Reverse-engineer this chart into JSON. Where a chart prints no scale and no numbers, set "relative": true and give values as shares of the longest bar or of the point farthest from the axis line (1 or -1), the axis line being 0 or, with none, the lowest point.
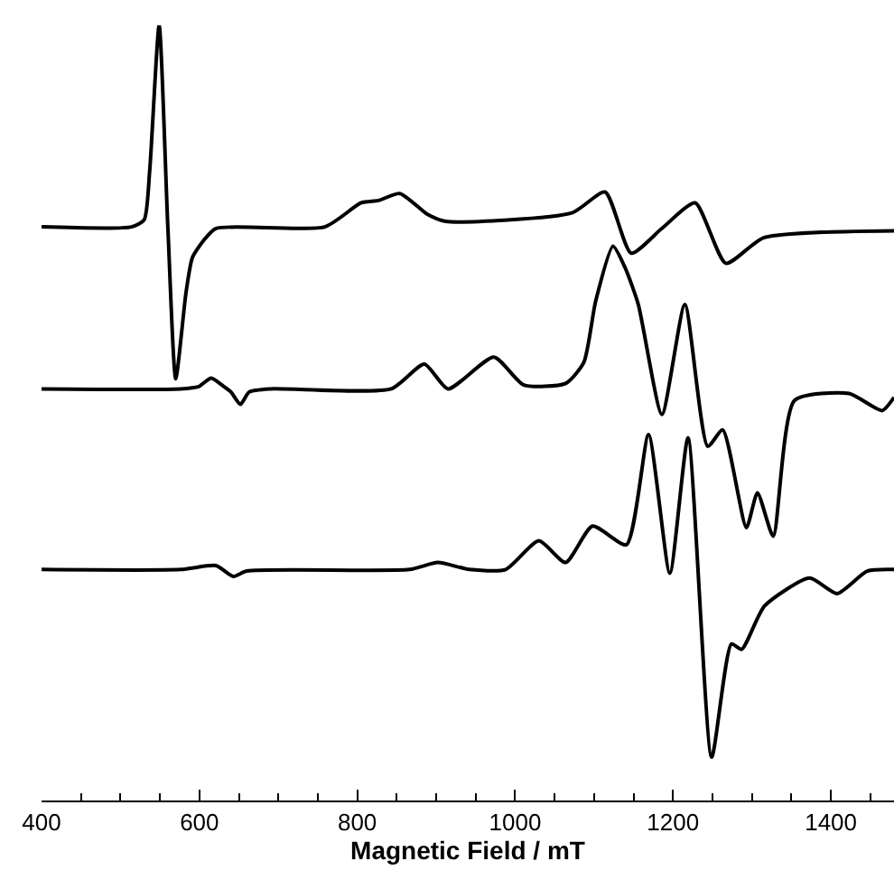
{
  "chart_data": {
    "type": "line",
    "relative": true,
    "xlabel": "Magnetic Field / mT",
    "xlim": [
      400,
      1480
    ],
    "xticks": [
      400,
      {
        "value": 450,
        "label": null
      },
      {
        "value": 500,
        "label": null
      },
      {
        "value": 550,
        "label": null
      },
      600,
      {
        "value": 650,
        "label": null
      },
      {
        "value": 700,
        "label": null
      },
      {
        "value": 750,
        "label": null
      },
      800,
      {
        "value": 850,
        "label": null
      },
      {
        "value": 900,
        "label": null
      },
      {
        "value": 950,
        "label": null
      },
      1000,
      {
        "value": 1050,
        "label": null
      },
      {
        "value": 1100,
        "label": null
      },
      {
        "value": 1150,
        "label": null
      },
      1200,
      {
        "value": 1250,
        "label": null
      },
      {
        "value": 1300,
        "label": null
      },
      {
        "value": 1350,
        "label": null
      },
      1400,
      {
        "value": 1450,
        "label": null
      }
    ],
    "tick_labels": "x",
    "marker": "none",
    "line_style": "solid",
    "series": [
      {
        "color": "#000000",
        "x": [
          400,
          514,
          530,
          537,
          549,
          560,
          570,
          583,
          591,
          605,
          621,
          759,
          805,
          827,
          854,
          889,
          912,
          1072,
          1114,
          1147,
          1186,
          1228,
          1267,
          1315,
          1480
        ],
        "values": [
          0.74,
          0.74,
          0.749,
          0.812,
          1.0,
          0.74,
          0.544,
          0.655,
          0.7,
          0.722,
          0.738,
          0.74,
          0.771,
          0.774,
          0.783,
          0.756,
          0.747,
          0.758,
          0.785,
          0.706,
          0.738,
          0.771,
          0.693,
          0.726,
          0.735
        ]
      },
      {
        "color": "#000000",
        "x": [
          400,
          576,
          599,
          615,
          631,
          640,
          652,
          663,
          690,
          843,
          885,
          915,
          973,
          1011,
          1064,
          1087,
          1102,
          1124,
          1139,
          1156,
          1186,
          1215,
          1244,
          1263,
          1293,
          1307,
          1327,
          1354,
          1423,
          1465,
          1480
        ],
        "values": [
          0.531,
          0.531,
          0.534,
          0.545,
          0.534,
          0.527,
          0.511,
          0.527,
          0.531,
          0.531,
          0.563,
          0.531,
          0.572,
          0.536,
          0.538,
          0.565,
          0.644,
          0.715,
          0.688,
          0.64,
          0.498,
          0.64,
          0.457,
          0.478,
          0.352,
          0.397,
          0.341,
          0.516,
          0.525,
          0.503,
          0.52
        ]
      },
      {
        "color": "#000000",
        "x": [
          400,
          576,
          621,
          643,
          660,
          866,
          902,
          942,
          988,
          1030,
          1064,
          1098,
          1141,
          1169,
          1196,
          1219,
          1249,
          1274,
          1287,
          1316,
          1373,
          1408,
          1446,
          1480
        ],
        "values": [
          0.298,
          0.298,
          0.303,
          0.289,
          0.296,
          0.298,
          0.307,
          0.298,
          0.298,
          0.335,
          0.307,
          0.354,
          0.33,
          0.472,
          0.293,
          0.468,
          0.056,
          0.202,
          0.195,
          0.251,
          0.287,
          0.267,
          0.296,
          0.298
        ]
      }
    ]
  }
}
